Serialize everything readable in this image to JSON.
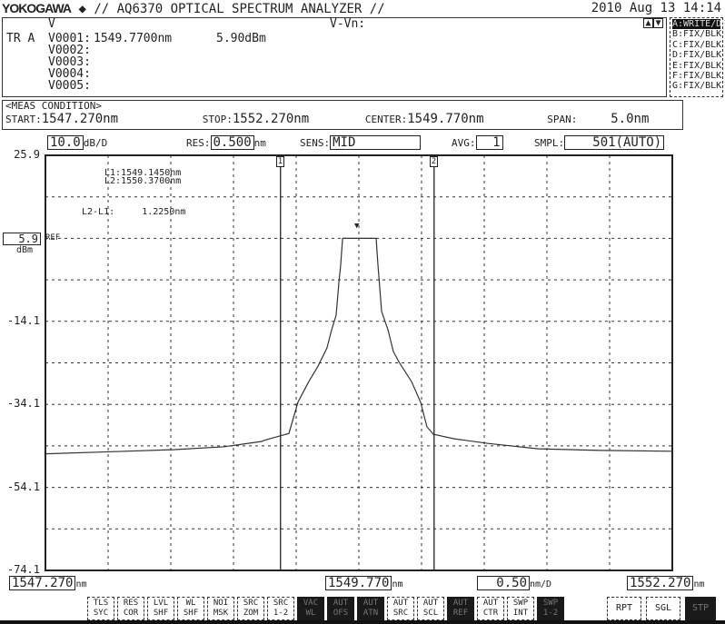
{
  "header": {
    "brand": "YOKOGAWA",
    "model": "// AQ6370 OPTICAL SPECTRUM ANALYZER //",
    "date": "2010 Aug 13 14:14"
  },
  "markers": {
    "col_head": "V",
    "delta_head": "V-Vn:",
    "trace": "TR A",
    "rows": [
      {
        "name": "V0001:",
        "wl": "1549.7700nm",
        "lvl": "5.90dBm"
      },
      {
        "name": "V0002:",
        "wl": "",
        "lvl": ""
      },
      {
        "name": "V0003:",
        "wl": "",
        "lvl": ""
      },
      {
        "name": "V0004:",
        "wl": "",
        "lvl": ""
      },
      {
        "name": "V0005:",
        "wl": "",
        "lvl": ""
      }
    ]
  },
  "traces": [
    {
      "id": "A:WRITE",
      "mode": "/DSP",
      "selected": true
    },
    {
      "id": "B:FIX",
      "mode": "/BLK"
    },
    {
      "id": "C:FIX",
      "mode": "/BLK"
    },
    {
      "id": "D:FIX",
      "mode": "/BLK"
    },
    {
      "id": "E:FIX",
      "mode": "/BLK"
    },
    {
      "id": "F:FIX",
      "mode": "/BLK"
    },
    {
      "id": "G:FIX",
      "mode": "/BLK"
    }
  ],
  "meas": {
    "title": "<MEAS CONDITION>",
    "start_l": "START:",
    "start": "1547.270nm",
    "stop_l": "STOP:",
    "stop": "1552.270nm",
    "center_l": "CENTER:",
    "center": "1549.770nm",
    "span_l": "SPAN:",
    "span": "5.0nm"
  },
  "params": {
    "scale": "10.0",
    "scale_unit": "dB/D",
    "res_l": "RES:",
    "res": "0.500",
    "res_unit": "nm",
    "sens_l": "SENS:",
    "sens": "MID",
    "avg_l": "AVG:",
    "avg": "1",
    "smpl_l": "SMPL:",
    "smpl": "501(AUTO)"
  },
  "line_markers": {
    "l1": "L1:1549.1450nm",
    "l2": "L2:1550.3700nm",
    "diff": "L2-L1:     1.2250nm",
    "l1_tag": "1",
    "l2_tag": "2",
    "l1_nm": 1549.145,
    "l2_nm": 1550.37
  },
  "ref": {
    "value": "5.9",
    "label": "REF",
    "unit": "dBm"
  },
  "bottom": {
    "start": "1547.270",
    "start_u": "nm",
    "center": "1549.770",
    "center_u": "nm",
    "div": "0.50",
    "div_u": "nm/D",
    "stop": "1552.270",
    "stop_u": "nm"
  },
  "softkeys": [
    {
      "l": "TLS SYC"
    },
    {
      "l": "RES COR"
    },
    {
      "l": "LVL SHF"
    },
    {
      "l": "WL SHF"
    },
    {
      "l": "NOI MSK"
    },
    {
      "l": "SRC ZOM"
    },
    {
      "l": "SRC 1-2"
    },
    {
      "l": "VAC WL",
      "dark": true
    },
    {
      "l": "AUT OFS",
      "dark": true
    },
    {
      "l": "AUT ATN",
      "dark": true
    },
    {
      "l": "AUT SRC"
    },
    {
      "l": "AUT SCL"
    },
    {
      "l": "AUT REF",
      "dark": true
    },
    {
      "l": "AUT CTR"
    },
    {
      "l": "SWP INT"
    },
    {
      "l": "SWP 1-2",
      "dark": true
    }
  ],
  "run_keys": [
    {
      "l": "RPT"
    },
    {
      "l": "SGL"
    },
    {
      "l": "STP",
      "dark": true
    }
  ],
  "chart_data": {
    "type": "line",
    "xlim": [
      1547.27,
      1552.27
    ],
    "ylim": [
      -74.1,
      25.9
    ],
    "xlabel": "nm",
    "ylabel": "dBm",
    "yticks": [
      "25.9",
      "5.9",
      "-14.1",
      "-34.1",
      "-54.1",
      "-74.1"
    ],
    "ytick_values": [
      25.9,
      5.9,
      -14.1,
      -34.1,
      -54.1,
      -74.1
    ],
    "grid": true,
    "x_divisions": 10,
    "y_divisions": 10,
    "series": [
      {
        "x": [
          1547.27,
          1547.8,
          1548.3,
          1548.7,
          1549.0,
          1549.009,
          1549.14,
          1549.212,
          1549.284,
          1549.371,
          1549.444,
          1549.516,
          1549.553,
          1549.589,
          1549.611,
          1549.625,
          1549.64,
          1549.77,
          1549.908,
          1549.922,
          1549.937,
          1549.951,
          1550.002,
          1550.045,
          1550.096,
          1550.19,
          1550.263,
          1550.313,
          1550.364,
          1550.531,
          1550.8,
          1551.2,
          1551.7,
          1552.27
        ],
        "y": [
          -46.0,
          -45.5,
          -45.0,
          -44.3,
          -43.0,
          -42.8,
          -41.7,
          -41.1,
          -33.6,
          -28.6,
          -24.9,
          -20.5,
          -16.1,
          -12.6,
          -4.5,
          -0.5,
          5.9,
          5.9,
          5.9,
          -0.5,
          -6.0,
          -11.7,
          -16.1,
          -21.4,
          -24.2,
          -28.6,
          -33.6,
          -39.5,
          -41.3,
          -42.4,
          -43.5,
          -44.8,
          -45.2,
          -45.4
        ]
      }
    ]
  }
}
